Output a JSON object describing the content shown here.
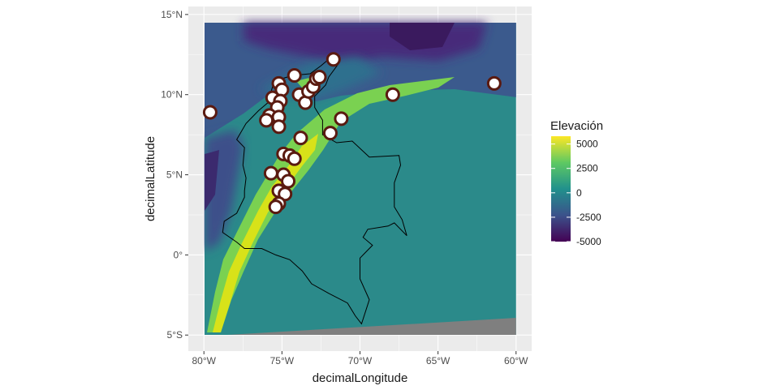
{
  "axes": {
    "x_title": "decimalLongitude",
    "y_title": "decimalLatitude",
    "x_ticks": [
      {
        "value": -80,
        "label": "80°W"
      },
      {
        "value": -75,
        "label": "75°W"
      },
      {
        "value": -70,
        "label": "70°W"
      },
      {
        "value": -65,
        "label": "65°W"
      },
      {
        "value": -60,
        "label": "60°W"
      }
    ],
    "y_ticks": [
      {
        "value": 15,
        "label": "15°N"
      },
      {
        "value": 10,
        "label": "10°N"
      },
      {
        "value": 5,
        "label": "5°N"
      },
      {
        "value": 0,
        "label": "0°"
      },
      {
        "value": -5,
        "label": "5°S"
      }
    ],
    "xlim": [
      -81,
      -59
    ],
    "ylim": [
      -6,
      15.5
    ],
    "raster_extent": {
      "lon": [
        -80,
        -60
      ],
      "lat": [
        -5,
        15
      ]
    },
    "grid": true
  },
  "legend": {
    "title": "Elevación",
    "placement": "right",
    "entries": [
      {
        "value": 5000,
        "label": "5000"
      },
      {
        "value": 2500,
        "label": "2500"
      },
      {
        "value": 0,
        "label": "0"
      },
      {
        "value": -2500,
        "label": "-2500"
      },
      {
        "value": -5000,
        "label": "-5000"
      }
    ],
    "range": [
      -5000,
      5800
    ],
    "colors": [
      "#440154",
      "#3b528b",
      "#21918c",
      "#5ec962",
      "#fde725"
    ]
  },
  "colors": {
    "panel_background": "#ebebeb",
    "grid_line": "#ffffff",
    "no_data": "#7f7f7f",
    "deep_ocean": "#3b1f66",
    "ocean": "#33638d",
    "lowland": "#2b8a8a",
    "mountains": "#7ad151",
    "peaks": "#d8e219",
    "border": "#000000",
    "point_fill": "#ffffff",
    "point_outline": "#5a1a10"
  },
  "points": [
    {
      "lon": -79.6,
      "lat": 8.9
    },
    {
      "lon": -75.2,
      "lat": 10.7
    },
    {
      "lon": -75.0,
      "lat": 10.3
    },
    {
      "lon": -75.6,
      "lat": 9.8
    },
    {
      "lon": -75.1,
      "lat": 9.6
    },
    {
      "lon": -75.3,
      "lat": 9.2
    },
    {
      "lon": -75.8,
      "lat": 8.7
    },
    {
      "lon": -76.0,
      "lat": 8.4
    },
    {
      "lon": -75.2,
      "lat": 8.6
    },
    {
      "lon": -75.2,
      "lat": 8.0
    },
    {
      "lon": -74.2,
      "lat": 11.2
    },
    {
      "lon": -73.9,
      "lat": 10.0
    },
    {
      "lon": -73.5,
      "lat": 9.5
    },
    {
      "lon": -73.3,
      "lat": 10.2
    },
    {
      "lon": -73.0,
      "lat": 10.5
    },
    {
      "lon": -72.8,
      "lat": 11.0
    },
    {
      "lon": -72.6,
      "lat": 11.1
    },
    {
      "lon": -71.7,
      "lat": 12.2
    },
    {
      "lon": -71.2,
      "lat": 8.5
    },
    {
      "lon": -71.9,
      "lat": 7.6
    },
    {
      "lon": -67.9,
      "lat": 10.0
    },
    {
      "lon": -61.4,
      "lat": 10.7
    },
    {
      "lon": -73.8,
      "lat": 7.3
    },
    {
      "lon": -74.9,
      "lat": 6.3
    },
    {
      "lon": -74.5,
      "lat": 6.2
    },
    {
      "lon": -74.2,
      "lat": 6.0
    },
    {
      "lon": -75.7,
      "lat": 5.1
    },
    {
      "lon": -74.9,
      "lat": 5.0
    },
    {
      "lon": -74.6,
      "lat": 4.6
    },
    {
      "lon": -75.2,
      "lat": 4.0
    },
    {
      "lon": -74.8,
      "lat": 3.8
    },
    {
      "lon": -75.2,
      "lat": 3.2
    },
    {
      "lon": -75.4,
      "lat": 3.0
    }
  ],
  "border_path": [
    [
      -77.9,
      7.2
    ],
    [
      -77.3,
      8.2
    ],
    [
      -76.9,
      8.6
    ],
    [
      -76.5,
      9.0
    ],
    [
      -75.9,
      9.5
    ],
    [
      -75.6,
      10.5
    ],
    [
      -75.0,
      11.0
    ],
    [
      -74.3,
      11.2
    ],
    [
      -73.2,
      11.3
    ],
    [
      -72.5,
      11.8
    ],
    [
      -71.9,
      12.3
    ],
    [
      -71.3,
      12.4
    ],
    [
      -71.4,
      11.9
    ],
    [
      -72.0,
      11.1
    ],
    [
      -72.2,
      10.6
    ],
    [
      -72.9,
      9.9
    ],
    [
      -72.9,
      9.2
    ],
    [
      -72.4,
      8.4
    ],
    [
      -72.4,
      7.5
    ],
    [
      -71.5,
      7.0
    ],
    [
      -70.5,
      7.1
    ],
    [
      -69.4,
      6.1
    ],
    [
      -67.5,
      6.2
    ],
    [
      -67.4,
      5.6
    ],
    [
      -67.8,
      4.5
    ],
    [
      -67.8,
      3.0
    ],
    [
      -67.3,
      2.2
    ],
    [
      -67.0,
      1.2
    ],
    [
      -67.8,
      2.0
    ],
    [
      -68.2,
      1.8
    ],
    [
      -69.5,
      1.6
    ],
    [
      -69.8,
      1.1
    ],
    [
      -69.2,
      0.6
    ],
    [
      -69.6,
      0.2
    ],
    [
      -70.0,
      -0.2
    ],
    [
      -70.0,
      -1.5
    ],
    [
      -69.4,
      -2.8
    ],
    [
      -69.9,
      -4.3
    ],
    [
      -70.3,
      -3.8
    ],
    [
      -70.8,
      -3.0
    ],
    [
      -72.0,
      -2.4
    ],
    [
      -73.1,
      -1.8
    ],
    [
      -73.7,
      -1.0
    ],
    [
      -74.5,
      -0.3
    ],
    [
      -75.4,
      0.0
    ],
    [
      -76.3,
      0.4
    ],
    [
      -77.4,
      0.4
    ],
    [
      -77.9,
      0.8
    ],
    [
      -78.8,
      1.4
    ],
    [
      -78.7,
      2.1
    ],
    [
      -77.9,
      2.6
    ],
    [
      -77.4,
      3.6
    ],
    [
      -77.4,
      4.0
    ],
    [
      -77.3,
      4.8
    ],
    [
      -77.5,
      5.6
    ],
    [
      -77.4,
      6.7
    ],
    [
      -77.9,
      7.2
    ]
  ]
}
